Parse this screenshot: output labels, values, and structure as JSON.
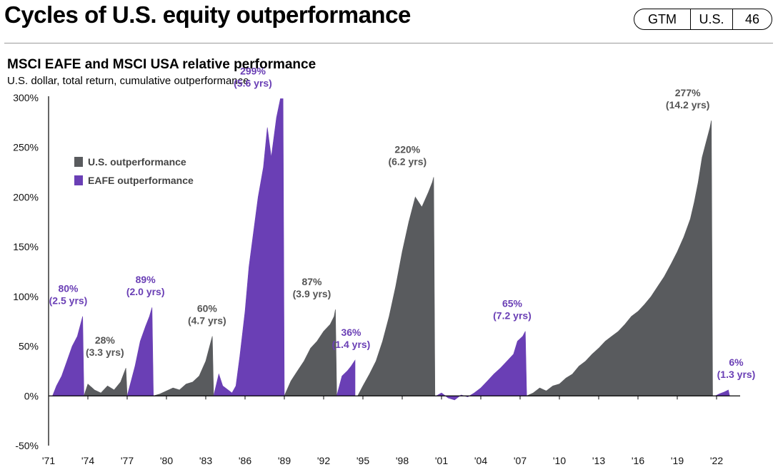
{
  "header": {
    "title": "Cycles of U.S. equity outperformance",
    "badge": [
      "GTM",
      "U.S.",
      "46"
    ]
  },
  "chart_data": {
    "type": "area",
    "title": "MSCI EAFE and MSCI USA relative performance",
    "subtitle": "U.S. dollar, total return, cumulative outperformance",
    "ylim": [
      -50,
      300
    ],
    "yticks": [
      "300%",
      "250%",
      "200%",
      "150%",
      "100%",
      "50%",
      "0%",
      "-50%"
    ],
    "ytick_values": [
      300,
      250,
      200,
      150,
      100,
      50,
      0,
      -50
    ],
    "xlim": [
      1971,
      2023.5
    ],
    "xticks": [
      "'71",
      "'74",
      "'77",
      "'80",
      "'83",
      "'86",
      "'89",
      "'92",
      "'95",
      "'98",
      "'01",
      "'04",
      "'07",
      "'10",
      "'13",
      "'16",
      "'19",
      "'22"
    ],
    "xtick_values": [
      1971,
      1974,
      1977,
      1980,
      1983,
      1986,
      1989,
      1992,
      1995,
      1998,
      2001,
      2004,
      2007,
      2010,
      2013,
      2016,
      2019,
      2022
    ],
    "grid": false,
    "legend_position": "top-left",
    "colors": {
      "us": "#595b5e",
      "eafe": "#6a3fb5"
    },
    "legend": [
      {
        "key": "us",
        "label": "U.S. outperformance"
      },
      {
        "key": "eafe",
        "label": "EAFE  outperformance"
      }
    ],
    "series": [
      {
        "name": "EAFE outperformance",
        "key": "eafe",
        "points": [
          [
            1971.3,
            0
          ],
          [
            1971.6,
            10
          ],
          [
            1972.0,
            20
          ],
          [
            1972.4,
            35
          ],
          [
            1972.8,
            50
          ],
          [
            1973.2,
            60
          ],
          [
            1973.4,
            70
          ],
          [
            1973.6,
            80
          ],
          [
            1973.7,
            0
          ]
        ]
      },
      {
        "name": "U.S. outperformance",
        "key": "us",
        "points": [
          [
            1973.7,
            0
          ],
          [
            1974.0,
            12
          ],
          [
            1974.5,
            6
          ],
          [
            1975.0,
            3
          ],
          [
            1975.5,
            10
          ],
          [
            1976.0,
            6
          ],
          [
            1976.5,
            14
          ],
          [
            1976.9,
            28
          ],
          [
            1977.0,
            0
          ]
        ]
      },
      {
        "name": "EAFE outperformance",
        "key": "eafe",
        "points": [
          [
            1977.0,
            0
          ],
          [
            1977.3,
            15
          ],
          [
            1977.6,
            30
          ],
          [
            1978.0,
            55
          ],
          [
            1978.4,
            70
          ],
          [
            1978.7,
            80
          ],
          [
            1978.9,
            89
          ],
          [
            1979.0,
            0
          ]
        ]
      },
      {
        "name": "U.S. outperformance",
        "key": "us",
        "points": [
          [
            1979.0,
            0
          ],
          [
            1979.5,
            2
          ],
          [
            1980.0,
            5
          ],
          [
            1980.5,
            8
          ],
          [
            1981.0,
            6
          ],
          [
            1981.5,
            12
          ],
          [
            1982.0,
            14
          ],
          [
            1982.5,
            20
          ],
          [
            1983.0,
            35
          ],
          [
            1983.3,
            50
          ],
          [
            1983.5,
            60
          ],
          [
            1983.6,
            0
          ]
        ]
      },
      {
        "name": "EAFE outperformance",
        "key": "eafe",
        "points": [
          [
            1983.6,
            0
          ],
          [
            1984.0,
            22
          ],
          [
            1984.3,
            10
          ],
          [
            1984.7,
            6
          ],
          [
            1985.0,
            3
          ],
          [
            1985.3,
            10
          ],
          [
            1985.6,
            40
          ],
          [
            1986.0,
            85
          ],
          [
            1986.3,
            130
          ],
          [
            1986.7,
            170
          ],
          [
            1987.0,
            200
          ],
          [
            1987.4,
            230
          ],
          [
            1987.7,
            270
          ],
          [
            1988.0,
            240
          ],
          [
            1988.4,
            280
          ],
          [
            1988.7,
            299
          ],
          [
            1988.9,
            299
          ],
          [
            1989.0,
            0
          ]
        ]
      },
      {
        "name": "U.S. outperformance",
        "key": "us",
        "points": [
          [
            1989.0,
            0
          ],
          [
            1989.5,
            15
          ],
          [
            1990.0,
            25
          ],
          [
            1990.5,
            35
          ],
          [
            1991.0,
            48
          ],
          [
            1991.5,
            55
          ],
          [
            1992.0,
            65
          ],
          [
            1992.5,
            72
          ],
          [
            1992.8,
            80
          ],
          [
            1992.9,
            87
          ],
          [
            1993.0,
            0
          ]
        ]
      },
      {
        "name": "EAFE outperformance",
        "key": "eafe",
        "points": [
          [
            1993.0,
            0
          ],
          [
            1993.4,
            20
          ],
          [
            1993.8,
            25
          ],
          [
            1994.1,
            30
          ],
          [
            1994.4,
            36
          ],
          [
            1994.4,
            0
          ]
        ]
      },
      {
        "name": "U.S. outperformance",
        "key": "us",
        "points": [
          [
            1994.6,
            0
          ],
          [
            1995.0,
            10
          ],
          [
            1995.5,
            22
          ],
          [
            1996.0,
            35
          ],
          [
            1996.5,
            55
          ],
          [
            1997.0,
            80
          ],
          [
            1997.5,
            110
          ],
          [
            1998.0,
            145
          ],
          [
            1998.5,
            175
          ],
          [
            1999.0,
            200
          ],
          [
            1999.5,
            190
          ],
          [
            2000.0,
            205
          ],
          [
            2000.3,
            215
          ],
          [
            2000.4,
            220
          ],
          [
            2000.5,
            0
          ]
        ]
      },
      {
        "name": "EAFE outperformance",
        "key": "eafe",
        "points": [
          [
            2000.6,
            0
          ],
          [
            2001.0,
            3
          ],
          [
            2001.5,
            -2
          ],
          [
            2002.0,
            -4
          ],
          [
            2002.5,
            1
          ],
          [
            2003.0,
            -1
          ],
          [
            2003.5,
            3
          ],
          [
            2004.0,
            8
          ],
          [
            2004.5,
            15
          ],
          [
            2005.0,
            22
          ],
          [
            2005.5,
            28
          ],
          [
            2006.0,
            35
          ],
          [
            2006.5,
            42
          ],
          [
            2006.8,
            55
          ],
          [
            2007.2,
            60
          ],
          [
            2007.4,
            65
          ],
          [
            2007.5,
            0
          ]
        ]
      },
      {
        "name": "U.S. outperformance",
        "key": "us",
        "points": [
          [
            2007.5,
            0
          ],
          [
            2008.0,
            3
          ],
          [
            2008.5,
            8
          ],
          [
            2009.0,
            5
          ],
          [
            2009.5,
            10
          ],
          [
            2010.0,
            12
          ],
          [
            2010.5,
            18
          ],
          [
            2011.0,
            22
          ],
          [
            2011.5,
            30
          ],
          [
            2012.0,
            35
          ],
          [
            2012.5,
            42
          ],
          [
            2013.0,
            48
          ],
          [
            2013.5,
            55
          ],
          [
            2014.0,
            60
          ],
          [
            2014.5,
            65
          ],
          [
            2015.0,
            72
          ],
          [
            2015.5,
            80
          ],
          [
            2016.0,
            85
          ],
          [
            2016.5,
            92
          ],
          [
            2017.0,
            100
          ],
          [
            2017.5,
            110
          ],
          [
            2018.0,
            120
          ],
          [
            2018.5,
            132
          ],
          [
            2019.0,
            145
          ],
          [
            2019.5,
            160
          ],
          [
            2020.0,
            178
          ],
          [
            2020.3,
            195
          ],
          [
            2020.6,
            215
          ],
          [
            2020.9,
            240
          ],
          [
            2021.2,
            255
          ],
          [
            2021.5,
            270
          ],
          [
            2021.6,
            277
          ],
          [
            2021.7,
            0
          ]
        ]
      },
      {
        "name": "EAFE outperformance",
        "key": "eafe",
        "points": [
          [
            2021.9,
            0
          ],
          [
            2022.2,
            2
          ],
          [
            2022.6,
            4
          ],
          [
            2022.9,
            6
          ],
          [
            2023.0,
            0
          ]
        ]
      }
    ],
    "annotations": [
      {
        "text": [
          "80%",
          "(2.5 yrs)"
        ],
        "key": "eafe",
        "x": 1972.5,
        "y": 80
      },
      {
        "text": [
          "28%",
          "(3.3 yrs)"
        ],
        "key": "us",
        "x": 1975.3,
        "y": 28
      },
      {
        "text": [
          "89%",
          "(2.0 yrs)"
        ],
        "key": "eafe",
        "x": 1978.4,
        "y": 89
      },
      {
        "text": [
          "60%",
          "(4.7 yrs)"
        ],
        "key": "us",
        "x": 1983.1,
        "y": 60
      },
      {
        "text": [
          "299%",
          "(5.6 yrs)"
        ],
        "key": "eafe",
        "x": 1986.6,
        "y": 299
      },
      {
        "text": [
          "87%",
          "(3.9 yrs)"
        ],
        "key": "us",
        "x": 1991.1,
        "y": 87
      },
      {
        "text": [
          "36%",
          "(1.4 yrs)"
        ],
        "key": "eafe",
        "x": 1994.1,
        "y": 36
      },
      {
        "text": [
          "220%",
          "(6.2 yrs)"
        ],
        "key": "us",
        "x": 1998.4,
        "y": 220
      },
      {
        "text": [
          "65%",
          "(7.2 yrs)"
        ],
        "key": "eafe",
        "x": 2006.4,
        "y": 65
      },
      {
        "text": [
          "277%",
          "(14.2 yrs)"
        ],
        "key": "us",
        "x": 2019.8,
        "y": 277
      },
      {
        "text": [
          "6%",
          "(1.3 yrs)"
        ],
        "key": "eafe",
        "x": 2023.5,
        "y": 6
      }
    ]
  }
}
